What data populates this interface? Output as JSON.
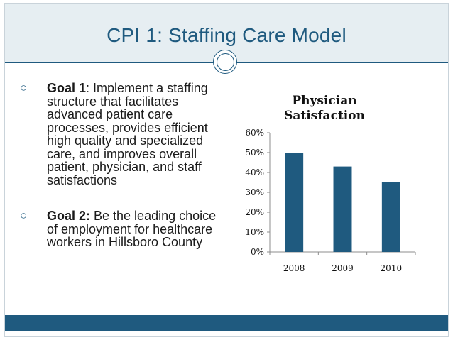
{
  "slide": {
    "title": "CPI 1: Staffing Care Model"
  },
  "bullets": [
    {
      "marker": "○",
      "label": "Goal 1",
      "separator": ":",
      "text": " Implement a staffing structure that facilitates advanced patient care processes, provides efficient high quality and specialized care, and improves overall patient, physician, and staff satisfactions"
    },
    {
      "marker": "○",
      "label": "Goal 2:",
      "separator": "",
      "text": " Be the leading choice of employment for healthcare workers in Hillsboro County"
    }
  ],
  "colors": {
    "accent": "#1f5a7f",
    "bar": "#1f5a7f",
    "title_band": "#e6eef2"
  },
  "chart_data": {
    "type": "bar",
    "title": "Physician Satisfaction",
    "title_lines": [
      "Physician",
      "Satisfaction"
    ],
    "categories": [
      "2008",
      "2009",
      "2010"
    ],
    "values": [
      50,
      43,
      35
    ],
    "ylim": [
      0,
      60
    ],
    "yticks": [
      0,
      10,
      20,
      30,
      40,
      50,
      60
    ],
    "ytick_labels": [
      "0%",
      "10%",
      "20%",
      "30%",
      "40%",
      "50%",
      "60%"
    ],
    "xlabel": "",
    "ylabel": "",
    "grid": false,
    "legend": "none"
  }
}
